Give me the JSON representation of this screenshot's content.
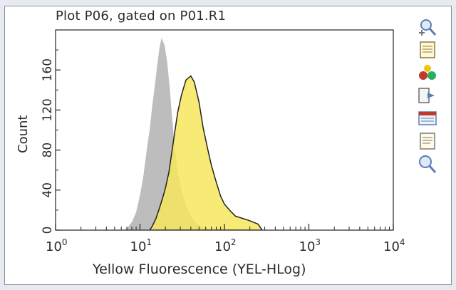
{
  "plot": {
    "title": "Plot P06, gated on P01.R1"
  },
  "chart_data": {
    "type": "histogram",
    "title": "Plot P06, gated on P01.R1",
    "xlabel": "Yellow Fluorescence (YEL-HLog)",
    "ylabel": "Count",
    "x_scale": "log",
    "xlim": [
      1,
      10000
    ],
    "ylim": [
      0,
      200
    ],
    "x_ticks": [
      {
        "value": 1,
        "base": "10",
        "exp": "0"
      },
      {
        "value": 10,
        "base": "10",
        "exp": "1"
      },
      {
        "value": 100,
        "base": "10",
        "exp": "2"
      },
      {
        "value": 1000,
        "base": "10",
        "exp": "3"
      },
      {
        "value": 10000,
        "base": "10",
        "exp": "4"
      }
    ],
    "y_ticks": [
      "0",
      "40",
      "80",
      "120",
      "160"
    ],
    "y_ticks_values": [
      0,
      40,
      80,
      120,
      160
    ],
    "series": [
      {
        "fill": "#bdbdbd",
        "points": [
          [
            6.5,
            0
          ],
          [
            7.2,
            3
          ],
          [
            8,
            8
          ],
          [
            9,
            18
          ],
          [
            10,
            35
          ],
          [
            11,
            55
          ],
          [
            12,
            80
          ],
          [
            13,
            100
          ],
          [
            14,
            125
          ],
          [
            15,
            145
          ],
          [
            16,
            165
          ],
          [
            17,
            182
          ],
          [
            18,
            192
          ],
          [
            19.5,
            185
          ],
          [
            21,
            168
          ],
          [
            22.5,
            142
          ],
          [
            24,
            112
          ],
          [
            26,
            80
          ],
          [
            28,
            58
          ],
          [
            31,
            40
          ],
          [
            35,
            24
          ],
          [
            40,
            14
          ],
          [
            45,
            8
          ],
          [
            55,
            3
          ],
          [
            70,
            0
          ]
        ]
      },
      {
        "fill": "#f7e75d",
        "stroke": "#222222",
        "points": [
          [
            13,
            0
          ],
          [
            14,
            4
          ],
          [
            15.5,
            12
          ],
          [
            17,
            22
          ],
          [
            18.5,
            32
          ],
          [
            20,
            42
          ],
          [
            22,
            58
          ],
          [
            24,
            80
          ],
          [
            26,
            100
          ],
          [
            28,
            118
          ],
          [
            31,
            135
          ],
          [
            35,
            150
          ],
          [
            40,
            154
          ],
          [
            44,
            148
          ],
          [
            50,
            128
          ],
          [
            56,
            102
          ],
          [
            63,
            82
          ],
          [
            70,
            65
          ],
          [
            80,
            48
          ],
          [
            90,
            34
          ],
          [
            100,
            26
          ],
          [
            115,
            20
          ],
          [
            135,
            14
          ],
          [
            160,
            12
          ],
          [
            190,
            10
          ],
          [
            220,
            8
          ],
          [
            250,
            6
          ],
          [
            270,
            2
          ],
          [
            280,
            0
          ]
        ]
      }
    ]
  },
  "colors": {
    "panel_bg": "#ffffff",
    "page_bg": "#e7ebf1",
    "gray_histogram": "#bdbdbd",
    "yellow_histogram": "#f7e75d"
  },
  "toolbar": {
    "icons": [
      "zoom-in-icon",
      "copy-plot-icon",
      "gate-colors-icon",
      "export-icon",
      "statistics-icon",
      "properties-icon",
      "zoom-out-icon"
    ]
  }
}
